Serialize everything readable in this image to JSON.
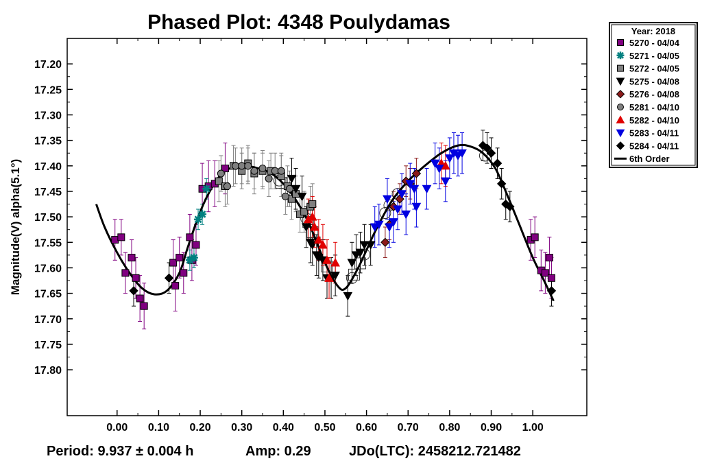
{
  "chart_data": {
    "type": "scatter",
    "title": "Phased Plot: 4348 Poulydamas",
    "ylabel": "Magnitude(V) alpha(5.1°)",
    "xlabel": "",
    "xlim": [
      -0.12,
      1.13
    ],
    "ylim": [
      17.15,
      17.89
    ],
    "y_inverted": true,
    "x_ticks": [
      "0.00",
      "0.10",
      "0.20",
      "0.30",
      "0.40",
      "0.50",
      "0.60",
      "0.70",
      "0.80",
      "0.90",
      "1.00"
    ],
    "y_ticks": [
      "17.20",
      "17.25",
      "17.30",
      "17.35",
      "17.40",
      "17.45",
      "17.50",
      "17.55",
      "17.60",
      "17.65",
      "17.70",
      "17.75",
      "17.80"
    ],
    "footer": {
      "period": "Period: 9.937 ± 0.004 h",
      "amp": "Amp: 0.29",
      "jdo": "JDo(LTC): 2458212.721482"
    },
    "legend_title": "Year: 2018",
    "legend_placement": "outside-right-top",
    "fit": {
      "name": "6th Order",
      "color": "#000000",
      "points": [
        [
          -0.05,
          17.475
        ],
        [
          -0.03,
          17.52
        ],
        [
          0.0,
          17.57
        ],
        [
          0.03,
          17.61
        ],
        [
          0.06,
          17.64
        ],
        [
          0.09,
          17.652
        ],
        [
          0.12,
          17.645
        ],
        [
          0.15,
          17.61
        ],
        [
          0.17,
          17.56
        ],
        [
          0.2,
          17.49
        ],
        [
          0.23,
          17.44
        ],
        [
          0.26,
          17.41
        ],
        [
          0.3,
          17.4
        ],
        [
          0.34,
          17.405
        ],
        [
          0.38,
          17.42
        ],
        [
          0.42,
          17.455
        ],
        [
          0.46,
          17.51
        ],
        [
          0.5,
          17.59
        ],
        [
          0.53,
          17.635
        ],
        [
          0.55,
          17.64
        ],
        [
          0.58,
          17.6
        ],
        [
          0.62,
          17.53
        ],
        [
          0.66,
          17.47
        ],
        [
          0.7,
          17.43
        ],
        [
          0.74,
          17.4
        ],
        [
          0.78,
          17.375
        ],
        [
          0.82,
          17.36
        ],
        [
          0.85,
          17.362
        ],
        [
          0.88,
          17.375
        ],
        [
          0.91,
          17.405
        ],
        [
          0.94,
          17.46
        ],
        [
          0.97,
          17.52
        ],
        [
          1.0,
          17.58
        ],
        [
          1.03,
          17.63
        ],
        [
          1.05,
          17.665
        ]
      ]
    },
    "series": [
      {
        "name": "5270 - 04/04",
        "marker": "square",
        "color": "#800080",
        "x": [
          -0.005,
          0.01,
          0.02,
          0.035,
          0.045,
          0.055,
          0.065,
          0.135,
          0.14,
          0.15,
          0.16,
          0.175,
          0.18,
          0.19,
          0.205,
          0.22,
          0.235,
          0.26,
          0.995,
          1.005,
          1.02,
          1.03,
          1.04,
          1.045
        ],
        "y": [
          17.545,
          17.54,
          17.61,
          17.58,
          17.62,
          17.66,
          17.675,
          17.59,
          17.635,
          17.58,
          17.61,
          17.54,
          17.585,
          17.555,
          17.445,
          17.44,
          17.435,
          17.405,
          17.545,
          17.54,
          17.605,
          17.61,
          17.58,
          17.62
        ],
        "err": [
          0.04,
          0.035,
          0.04,
          0.035,
          0.04,
          0.045,
          0.045,
          0.045,
          0.05,
          0.04,
          0.04,
          0.045,
          0.04,
          0.04,
          0.05,
          0.05,
          0.045,
          0.05,
          0.04,
          0.04,
          0.04,
          0.04,
          0.04,
          0.04
        ]
      },
      {
        "name": "5271 - 04/05",
        "marker": "asterisk",
        "color": "#008080",
        "x": [
          0.175,
          0.185,
          0.195,
          0.205,
          0.215
        ],
        "y": [
          17.585,
          17.58,
          17.505,
          17.495,
          17.445
        ],
        "err": [
          0.02,
          0.02,
          0.02,
          0.02,
          0.02
        ]
      },
      {
        "name": "5272 - 04/05",
        "marker": "square",
        "color": "#808080",
        "x": [
          0.245,
          0.26,
          0.28,
          0.3,
          0.315,
          0.33,
          0.35,
          0.37,
          0.395,
          0.41,
          0.42,
          0.43,
          0.44,
          0.45,
          0.465,
          0.47
        ],
        "y": [
          17.43,
          17.44,
          17.4,
          17.41,
          17.395,
          17.415,
          17.41,
          17.41,
          17.42,
          17.44,
          17.465,
          17.455,
          17.495,
          17.49,
          17.48,
          17.475
        ],
        "err": [
          0.04,
          0.04,
          0.04,
          0.035,
          0.035,
          0.04,
          0.035,
          0.035,
          0.04,
          0.04,
          0.04,
          0.035,
          0.035,
          0.04,
          0.04,
          0.04
        ]
      },
      {
        "name": "5275 - 04/08",
        "marker": "triangle-down",
        "color": "#000000",
        "x": [
          0.42,
          0.43,
          0.445,
          0.455,
          0.465,
          0.47,
          0.48,
          0.485,
          0.495,
          0.505,
          0.515,
          0.525,
          0.555,
          0.565,
          0.575,
          0.585,
          0.595,
          0.61
        ],
        "y": [
          17.425,
          17.445,
          17.46,
          17.52,
          17.55,
          17.555,
          17.575,
          17.58,
          17.585,
          17.62,
          17.62,
          17.615,
          17.655,
          17.59,
          17.575,
          17.57,
          17.555,
          17.555
        ],
        "err": [
          0.04,
          0.04,
          0.04,
          0.04,
          0.04,
          0.04,
          0.04,
          0.04,
          0.04,
          0.04,
          0.04,
          0.04,
          0.04,
          0.04,
          0.04,
          0.04,
          0.04,
          0.04
        ]
      },
      {
        "name": "5276 - 04/08",
        "marker": "diamond",
        "color": "#8b1a1a",
        "x": [
          0.645,
          0.655,
          0.665,
          0.68,
          0.695,
          0.705,
          0.72
        ],
        "y": [
          17.55,
          17.515,
          17.48,
          17.465,
          17.43,
          17.435,
          17.415
        ],
        "err": [
          0.03,
          0.03,
          0.03,
          0.03,
          0.03,
          0.03,
          0.03
        ]
      },
      {
        "name": "5281 - 04/10",
        "marker": "circle",
        "color": "#808080",
        "x": [
          0.25,
          0.265,
          0.285,
          0.3,
          0.315,
          0.33,
          0.35,
          0.365,
          0.38,
          0.395,
          0.405,
          0.415
        ],
        "y": [
          17.415,
          17.44,
          17.4,
          17.4,
          17.4,
          17.41,
          17.405,
          17.425,
          17.41,
          17.41,
          17.46,
          17.445
        ],
        "err": [
          0.035,
          0.035,
          0.035,
          0.035,
          0.035,
          0.035,
          0.035,
          0.035,
          0.035,
          0.035,
          0.035,
          0.035
        ]
      },
      {
        "name": "5282 - 04/10",
        "marker": "triangle-up",
        "color": "#e00000",
        "x": [
          0.46,
          0.47,
          0.475,
          0.485,
          0.495,
          0.505,
          0.51,
          0.525,
          0.78,
          0.79
        ],
        "y": [
          17.505,
          17.5,
          17.52,
          17.545,
          17.555,
          17.585,
          17.62,
          17.59,
          17.395,
          17.4
        ],
        "err": [
          0.04,
          0.04,
          0.04,
          0.04,
          0.04,
          0.04,
          0.04,
          0.04,
          0.04,
          0.04
        ]
      },
      {
        "name": "5283 - 04/11",
        "marker": "triangle-down",
        "color": "#0000e0",
        "x": [
          0.62,
          0.63,
          0.65,
          0.655,
          0.665,
          0.675,
          0.685,
          0.695,
          0.705,
          0.715,
          0.72,
          0.745,
          0.765,
          0.775,
          0.79,
          0.8,
          0.81,
          0.82,
          0.83
        ],
        "y": [
          17.52,
          17.515,
          17.465,
          17.52,
          17.51,
          17.485,
          17.455,
          17.495,
          17.435,
          17.445,
          17.48,
          17.445,
          17.395,
          17.405,
          17.43,
          17.385,
          17.375,
          17.38,
          17.375
        ],
        "err": [
          0.04,
          0.04,
          0.04,
          0.04,
          0.04,
          0.04,
          0.04,
          0.04,
          0.04,
          0.04,
          0.04,
          0.04,
          0.04,
          0.04,
          0.04,
          0.04,
          0.04,
          0.04,
          0.04
        ]
      },
      {
        "name": "5284 - 04/11",
        "marker": "diamond",
        "color": "#000000",
        "x": [
          0.04,
          0.125,
          0.88,
          0.89,
          0.9,
          0.915,
          0.925,
          0.935,
          0.945,
          1.045
        ],
        "y": [
          17.645,
          17.62,
          17.36,
          17.365,
          17.375,
          17.395,
          17.435,
          17.475,
          17.48,
          17.645
        ],
        "err": [
          0.03,
          0.03,
          0.03,
          0.03,
          0.03,
          0.03,
          0.03,
          0.03,
          0.03,
          0.03
        ]
      }
    ],
    "open_markers": [
      {
        "marker": "circle",
        "x": [
          0.39,
          0.455,
          0.565,
          0.595,
          0.645,
          0.655,
          0.675,
          0.885
        ]
      },
      {
        "marker": "square",
        "x": [
          0.395,
          0.46,
          0.47,
          0.505,
          0.57,
          0.585
        ]
      }
    ]
  }
}
